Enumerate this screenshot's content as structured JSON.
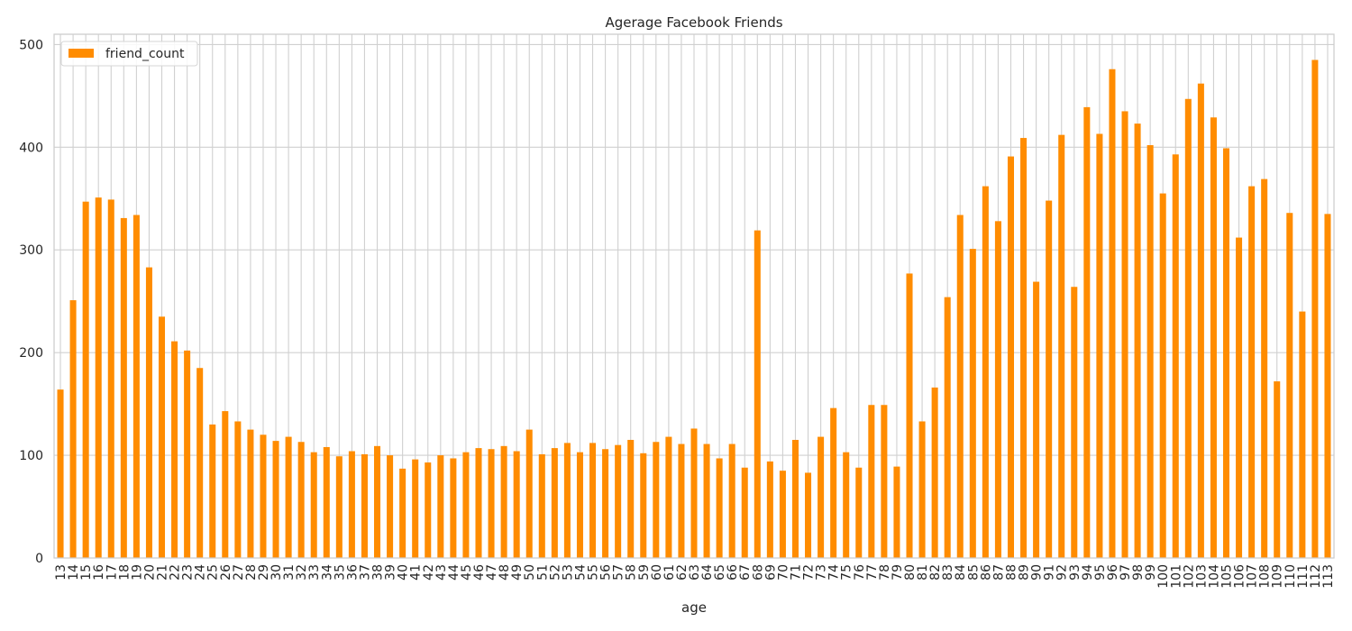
{
  "chart_data": {
    "type": "bar",
    "title": "Agerage Facebook Friends",
    "xlabel": "age",
    "ylabel": "",
    "ylim": [
      0,
      510
    ],
    "yticks": [
      0,
      100,
      200,
      300,
      400,
      500
    ],
    "grid": true,
    "legend": {
      "placement": "top-left"
    },
    "categories": [
      "13",
      "14",
      "15",
      "16",
      "17",
      "18",
      "19",
      "20",
      "21",
      "22",
      "23",
      "24",
      "25",
      "26",
      "27",
      "28",
      "29",
      "30",
      "31",
      "32",
      "33",
      "34",
      "35",
      "36",
      "37",
      "38",
      "39",
      "40",
      "41",
      "42",
      "43",
      "44",
      "45",
      "46",
      "47",
      "48",
      "49",
      "50",
      "51",
      "52",
      "53",
      "54",
      "55",
      "56",
      "57",
      "58",
      "59",
      "60",
      "61",
      "62",
      "63",
      "64",
      "65",
      "66",
      "67",
      "68",
      "69",
      "70",
      "71",
      "72",
      "73",
      "74",
      "75",
      "76",
      "77",
      "78",
      "79",
      "80",
      "81",
      "82",
      "83",
      "84",
      "85",
      "86",
      "87",
      "88",
      "89",
      "90",
      "91",
      "92",
      "93",
      "94",
      "95",
      "96",
      "97",
      "98",
      "99",
      "100",
      "101",
      "102",
      "103",
      "104",
      "105",
      "106",
      "107",
      "108",
      "109",
      "110",
      "111",
      "112",
      "113"
    ],
    "series": [
      {
        "name": "friend_count",
        "color": "#ff8c00",
        "values": [
          164,
          251,
          347,
          351,
          349,
          331,
          334,
          283,
          235,
          211,
          202,
          185,
          130,
          143,
          133,
          125,
          120,
          114,
          118,
          113,
          103,
          108,
          99,
          104,
          101,
          109,
          100,
          87,
          96,
          93,
          100,
          97,
          103,
          107,
          106,
          109,
          104,
          125,
          101,
          107,
          112,
          103,
          112,
          106,
          110,
          115,
          102,
          113,
          118,
          111,
          126,
          111,
          97,
          111,
          88,
          319,
          94,
          85,
          115,
          83,
          118,
          146,
          103,
          88,
          149,
          149,
          89,
          277,
          133,
          166,
          254,
          334,
          301,
          362,
          328,
          391,
          409,
          269,
          348,
          412,
          264,
          439,
          413,
          476,
          435,
          423,
          402,
          355,
          393,
          447,
          462,
          429,
          399,
          312,
          362,
          369,
          172,
          336,
          240,
          485,
          335
        ]
      }
    ]
  }
}
